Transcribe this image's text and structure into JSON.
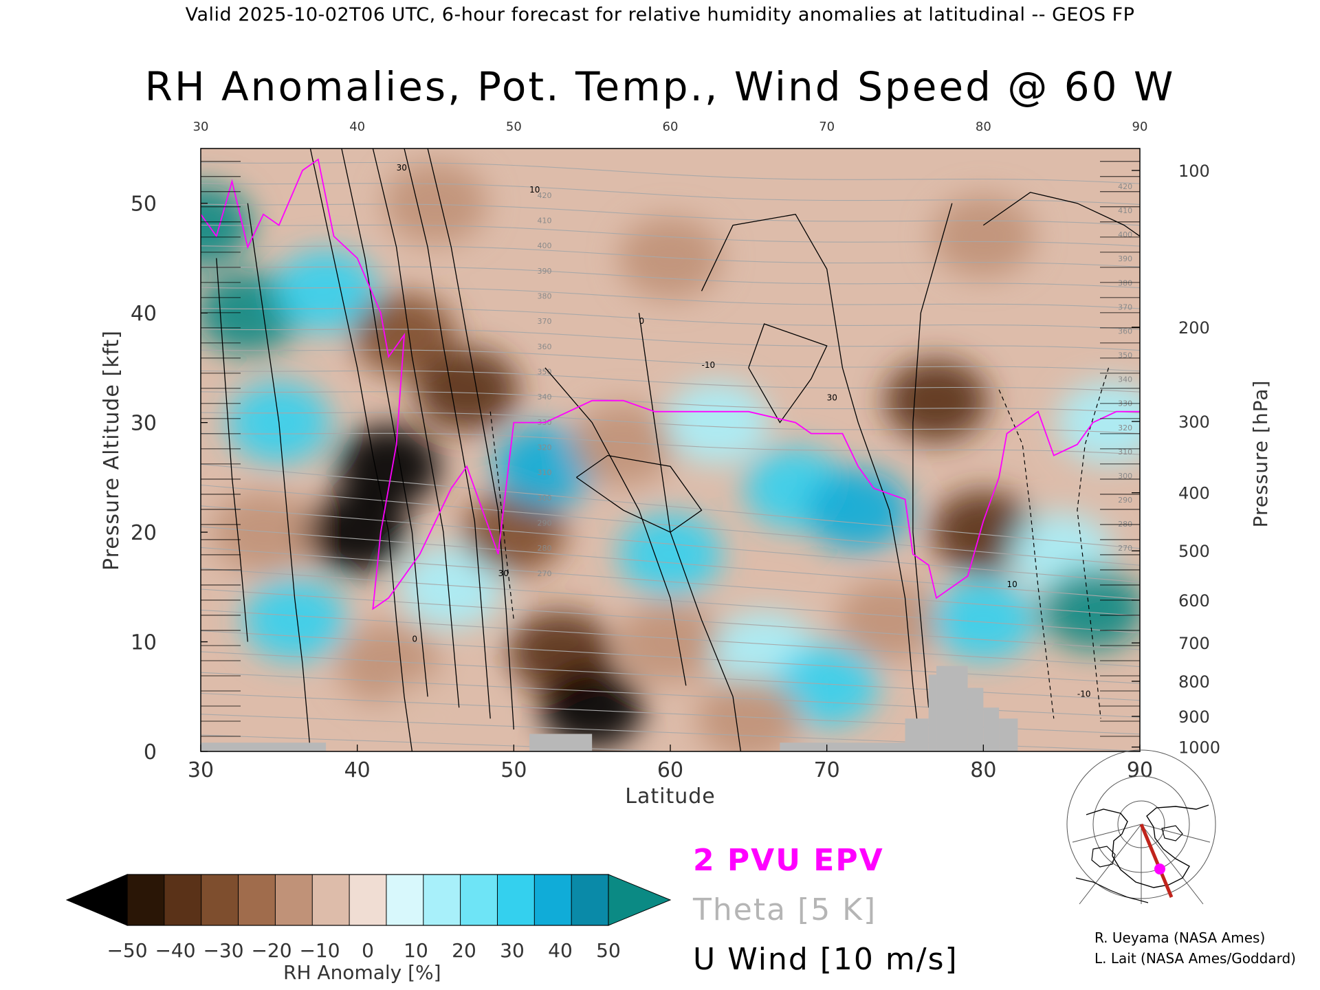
{
  "header": "Valid 2025-10-02T06 UTC, 6-hour forecast for relative humidity anomalies at latitudinal -- GEOS FP",
  "title": "RH Anomalies, Pot. Temp., Wind Speed @ 60 W",
  "chart_data": {
    "type": "heatmap",
    "title": "RH Anomalies, Pot. Temp., Wind Speed @ 60 W",
    "xlabel": "Latitude",
    "ylabel_left": "Pressure Altitude [kft]",
    "ylabel_right": "Pressure [hPa]",
    "xlim": [
      30,
      90
    ],
    "ylim": [
      0,
      55
    ],
    "x_ticks": [
      30,
      40,
      50,
      60,
      70,
      80,
      90
    ],
    "y_ticks": [
      0,
      10,
      20,
      30,
      40,
      50
    ],
    "pressure_ticks": [
      {
        "hPa": "100",
        "kft": 53.0
      },
      {
        "hPa": "200",
        "kft": 38.7
      },
      {
        "hPa": "300",
        "kft": 30.1
      },
      {
        "hPa": "400",
        "kft": 23.6
      },
      {
        "hPa": "500",
        "kft": 18.3
      },
      {
        "hPa": "600",
        "kft": 13.8
      },
      {
        "hPa": "700",
        "kft": 9.9
      },
      {
        "hPa": "800",
        "kft": 6.4
      },
      {
        "hPa": "900",
        "kft": 3.2
      },
      {
        "hPa": "1000",
        "kft": 0.4
      }
    ],
    "colorbar": {
      "label": "RH Anomaly [%]",
      "ticks": [
        "−50",
        "−40",
        "−30",
        "−20",
        "−10",
        "0",
        "10",
        "20",
        "30",
        "40",
        "50"
      ],
      "colors": [
        "#2a1606",
        "#5a3218",
        "#7e4e2e",
        "#a06c4c",
        "#c09278",
        "#ddbcaa",
        "#f0ddd3",
        "#d8f8fc",
        "#a8f0fa",
        "#6ee4f6",
        "#34d0ee",
        "#10acd8",
        "#0a8aa8"
      ],
      "under_color": "#000000",
      "over_color": "#0b8a84"
    },
    "theta_labels": [
      "420",
      "410",
      "400",
      "390",
      "380",
      "370",
      "360",
      "350",
      "340",
      "330",
      "320",
      "310",
      "300",
      "290",
      "280",
      "270"
    ],
    "wind_labels": [
      "30",
      "10",
      "0",
      "-10"
    ],
    "legend": [
      {
        "label": "2 PVU EPV",
        "color": "#ff00ff"
      },
      {
        "label": "Theta [5 K]",
        "color": "#b5b5b5"
      },
      {
        "label": "U Wind [10 m/s]",
        "color": "#000000"
      }
    ],
    "anomaly_field": [
      {
        "lat": 30,
        "alt": 48,
        "rh": 50
      },
      {
        "lat": 33,
        "alt": 40,
        "rh": 50
      },
      {
        "lat": 35,
        "alt": 30,
        "rh": 30
      },
      {
        "lat": 34,
        "alt": 20,
        "rh": -20
      },
      {
        "lat": 36,
        "alt": 12,
        "rh": 30
      },
      {
        "lat": 38,
        "alt": 42,
        "rh": 30
      },
      {
        "lat": 40,
        "alt": 20,
        "rh": -50
      },
      {
        "lat": 42,
        "alt": 26,
        "rh": -50
      },
      {
        "lat": 43,
        "alt": 38,
        "rh": -30
      },
      {
        "lat": 47,
        "alt": 33,
        "rh": -40
      },
      {
        "lat": 46,
        "alt": 15,
        "rh": 20
      },
      {
        "lat": 42,
        "alt": 8,
        "rh": -20
      },
      {
        "lat": 50,
        "alt": 20,
        "rh": -30
      },
      {
        "lat": 53,
        "alt": 9,
        "rh": -40
      },
      {
        "lat": 55,
        "alt": 4,
        "rh": -50
      },
      {
        "lat": 52,
        "alt": 26,
        "rh": 40
      },
      {
        "lat": 57,
        "alt": 28,
        "rh": -20
      },
      {
        "lat": 60,
        "alt": 18,
        "rh": 30
      },
      {
        "lat": 60,
        "alt": 10,
        "rh": -20
      },
      {
        "lat": 63,
        "alt": 30,
        "rh": 20
      },
      {
        "lat": 68,
        "alt": 24,
        "rh": 30
      },
      {
        "lat": 72,
        "alt": 22,
        "rh": 40
      },
      {
        "lat": 66,
        "alt": 9,
        "rh": 20
      },
      {
        "lat": 70,
        "alt": 6,
        "rh": 30
      },
      {
        "lat": 77,
        "alt": 32,
        "rh": -40
      },
      {
        "lat": 80,
        "alt": 20,
        "rh": -40
      },
      {
        "lat": 74,
        "alt": 12,
        "rh": -20
      },
      {
        "lat": 80,
        "alt": 12,
        "rh": 30
      },
      {
        "lat": 85,
        "alt": 18,
        "rh": 20
      },
      {
        "lat": 87,
        "alt": 13,
        "rh": 50
      },
      {
        "lat": 88,
        "alt": 30,
        "rh": 20
      },
      {
        "lat": 60,
        "alt": 45,
        "rh": -20
      },
      {
        "lat": 45,
        "alt": 50,
        "rh": -20
      },
      {
        "lat": 80,
        "alt": 47,
        "rh": -20
      },
      {
        "lat": 65,
        "alt": 3,
        "rh": -20
      },
      {
        "lat": 45,
        "alt": 3,
        "rh": -10
      }
    ],
    "terrain": [
      {
        "lat0": 30,
        "lat1": 38,
        "alt": 0.8
      },
      {
        "lat0": 51,
        "lat1": 55,
        "alt": 1.6
      },
      {
        "lat0": 67,
        "lat1": 75,
        "alt": 0.8
      },
      {
        "lat0": 75,
        "lat1": 76.5,
        "alt": 3.0
      },
      {
        "lat0": 76.5,
        "lat1": 77,
        "alt": 7.0
      },
      {
        "lat0": 77,
        "lat1": 79,
        "alt": 7.8
      },
      {
        "lat0": 79,
        "lat1": 80,
        "alt": 5.8
      },
      {
        "lat0": 80,
        "lat1": 81,
        "alt": 4.0
      },
      {
        "lat0": 81,
        "lat1": 82.2,
        "alt": 3.0
      }
    ]
  },
  "colorbar_label": "RH Anomaly [%]",
  "legend_epv": "2 PVU EPV",
  "legend_theta": "Theta [5 K]",
  "legend_wind": "U Wind [10 m/s]",
  "credits": [
    "R. Ueyama (NASA Ames)",
    "L. Lait (NASA Ames/Goddard)"
  ]
}
